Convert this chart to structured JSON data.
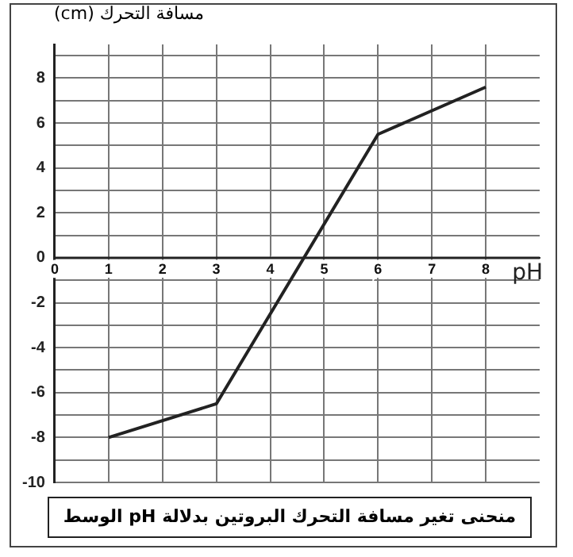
{
  "chart_data": {
    "type": "line",
    "title": "منحنى تغير مسافة التحرك البروتين بدلالة pH الوسط",
    "xlabel": "pH",
    "ylabel": "مسافة التحرك (cm)",
    "x": [
      1,
      3,
      6,
      8
    ],
    "series": [
      {
        "color": "#222222",
        "values": [
          -8,
          -6.5,
          5.5,
          7.6
        ]
      }
    ],
    "xlim": [
      0,
      9
    ],
    "xticks": [
      0,
      1,
      2,
      3,
      4,
      5,
      6,
      7,
      8
    ],
    "ylim": [
      -10,
      9.5
    ],
    "yticks": [
      -10,
      {
        "value": -9,
        "label": null
      },
      -8,
      {
        "value": -7,
        "label": null
      },
      -6,
      {
        "value": -5,
        "label": null
      },
      -4,
      {
        "value": -3,
        "label": null
      },
      -2,
      {
        "value": -1,
        "label": null
      },
      0,
      {
        "value": 1,
        "label": null
      },
      2,
      {
        "value": 3,
        "label": null
      },
      4,
      {
        "value": 5,
        "label": null
      },
      6,
      {
        "value": 7,
        "label": null
      },
      8,
      {
        "value": 9,
        "label": null
      }
    ],
    "grid": true,
    "legend": false,
    "marker": "none",
    "line_style": "solid"
  }
}
